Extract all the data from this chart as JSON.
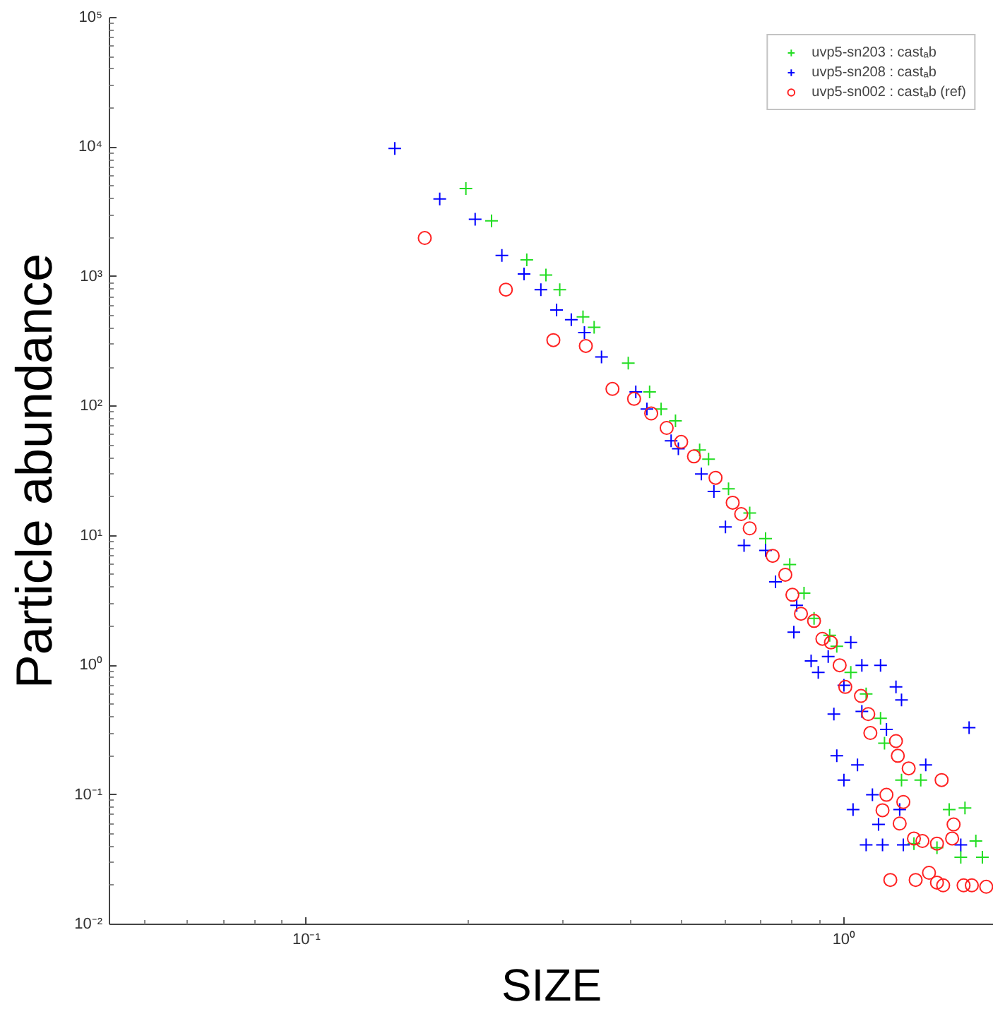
{
  "chart_data": {
    "type": "scatter",
    "xlabel": "SIZE",
    "ylabel": "Particle abundance",
    "log": "xy",
    "grid": false,
    "legend": "top right",
    "xlim": [
      0.043,
      1.9
    ],
    "ylim": [
      0.01,
      100000
    ],
    "xticks": [
      {
        "value": 0.1,
        "label": "10⁻¹"
      },
      {
        "value": 1,
        "label": "10⁰"
      }
    ],
    "yticks": [
      {
        "value": 0.01,
        "label": "10⁻²"
      },
      {
        "value": 0.1,
        "label": "10⁻¹"
      },
      {
        "value": 1,
        "label": "10⁰"
      },
      {
        "value": 10,
        "label": "10¹"
      },
      {
        "value": 100,
        "label": "10²"
      },
      {
        "value": 1000,
        "label": "10³"
      },
      {
        "value": 10000,
        "label": "10⁴"
      },
      {
        "value": 100000,
        "label": "10⁵"
      }
    ],
    "series": [
      {
        "name": "uvp5-sn203 : castₐb",
        "color": "#22dd22",
        "marker": "cross",
        "x": [
          0.198,
          0.221,
          0.257,
          0.279,
          0.296,
          0.327,
          0.343,
          0.397,
          0.435,
          0.457,
          0.486,
          0.539,
          0.56,
          0.61,
          0.668,
          0.715,
          0.793,
          0.843,
          0.88,
          0.941,
          0.97,
          1.03,
          1.1,
          1.17,
          1.19,
          1.28,
          1.39,
          1.57,
          1.68,
          1.35,
          1.49,
          1.65,
          1.81,
          1.76
        ],
        "values": [
          4790,
          2700,
          1350,
          1030,
          795,
          490,
          407,
          215,
          129,
          95,
          77,
          46,
          39,
          23,
          15,
          9.5,
          6.0,
          3.6,
          2.3,
          1.7,
          1.4,
          0.88,
          0.6,
          0.39,
          0.25,
          0.13,
          0.13,
          0.077,
          0.079,
          0.042,
          0.039,
          0.033,
          0.033,
          0.044
        ]
      },
      {
        "name": "uvp5-sn208 : castₐb",
        "color": "#0000ff",
        "marker": "cross",
        "x": [
          0.146,
          0.177,
          0.206,
          0.231,
          0.254,
          0.273,
          0.292,
          0.311,
          0.329,
          0.354,
          0.41,
          0.43,
          0.477,
          0.492,
          0.543,
          0.573,
          0.602,
          0.652,
          0.715,
          0.746,
          0.817,
          0.807,
          0.869,
          0.896,
          0.935,
          1.0,
          1.03,
          1.08,
          1.17,
          1.25,
          1.28,
          1.2,
          1.08,
          0.958,
          0.97,
          1.06,
          1.0,
          1.13,
          1.04,
          1.16,
          1.1,
          1.18,
          1.29,
          1.42,
          1.71,
          1.65,
          1.27
        ],
        "values": [
          9770,
          3980,
          2780,
          1460,
          1050,
          795,
          553,
          465,
          370,
          240,
          129,
          95,
          54,
          47,
          30,
          22,
          11.7,
          8.4,
          7.7,
          4.4,
          2.9,
          1.8,
          1.08,
          0.88,
          1.17,
          0.7,
          1.5,
          1.0,
          1.0,
          0.68,
          0.54,
          0.32,
          0.44,
          0.42,
          0.2,
          0.17,
          0.13,
          0.1,
          0.077,
          0.059,
          0.041,
          0.041,
          0.041,
          0.17,
          0.33,
          0.041,
          0.077
        ]
      },
      {
        "name": "uvp5-sn002 : castₐb (ref)",
        "color": "#ff2222",
        "marker": "circle",
        "x": [
          0.166,
          0.235,
          0.288,
          0.331,
          0.371,
          0.407,
          0.438,
          0.468,
          0.498,
          0.526,
          0.577,
          0.621,
          0.644,
          0.668,
          0.737,
          0.778,
          0.802,
          0.832,
          0.88,
          0.912,
          0.946,
          0.982,
          1.006,
          1.076,
          1.11,
          1.12,
          1.25,
          1.26,
          1.32,
          1.52,
          1.2,
          1.29,
          1.18,
          1.27,
          1.6,
          1.59,
          1.35,
          1.4,
          1.49,
          1.22,
          1.36,
          1.44,
          1.49,
          1.53,
          1.67,
          1.73,
          1.84
        ],
        "values": [
          1990,
          795,
          324,
          292,
          136,
          114,
          88,
          68,
          53,
          41,
          28,
          18,
          14.7,
          11.4,
          7.0,
          5.0,
          3.5,
          2.5,
          2.2,
          1.6,
          1.5,
          1.0,
          0.68,
          0.58,
          0.42,
          0.3,
          0.26,
          0.2,
          0.16,
          0.13,
          0.1,
          0.088,
          0.076,
          0.06,
          0.059,
          0.046,
          0.046,
          0.044,
          0.042,
          0.022,
          0.022,
          0.025,
          0.021,
          0.02,
          0.02,
          0.02,
          0.0195
        ]
      }
    ]
  }
}
